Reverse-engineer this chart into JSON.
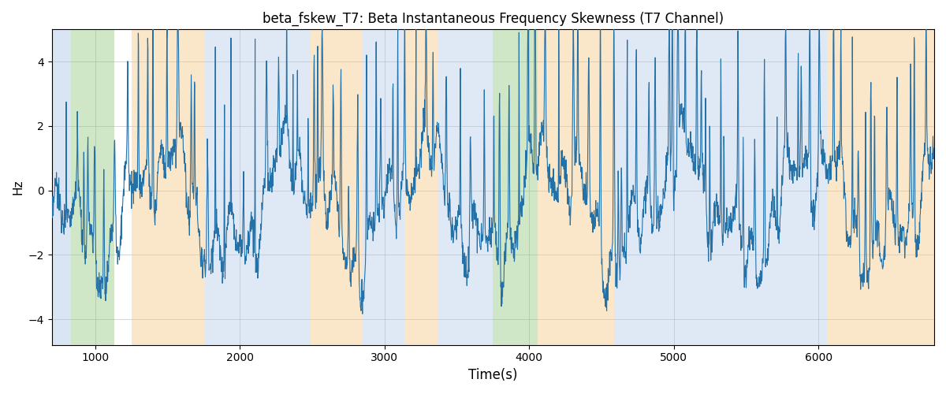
{
  "title": "beta_fskew_T7: Beta Instantaneous Frequency Skewness (T7 Channel)",
  "xlabel": "Time(s)",
  "ylabel": "Hz",
  "xlim": [
    700,
    6800
  ],
  "ylim": [
    -4.8,
    5.0
  ],
  "yticks": [
    -4,
    -2,
    0,
    2,
    4
  ],
  "background_bands": [
    {
      "xmin": 700,
      "xmax": 835,
      "color": "#adc6e8",
      "alpha": 0.45
    },
    {
      "xmin": 835,
      "xmax": 1135,
      "color": "#90c87a",
      "alpha": 0.42
    },
    {
      "xmin": 1135,
      "xmax": 1250,
      "color": "#ffffff",
      "alpha": 0.0
    },
    {
      "xmin": 1250,
      "xmax": 1760,
      "color": "#f5c888",
      "alpha": 0.45
    },
    {
      "xmin": 1760,
      "xmax": 2490,
      "color": "#adc6e8",
      "alpha": 0.38
    },
    {
      "xmin": 2490,
      "xmax": 2850,
      "color": "#f5c888",
      "alpha": 0.45
    },
    {
      "xmin": 2850,
      "xmax": 3140,
      "color": "#adc6e8",
      "alpha": 0.38
    },
    {
      "xmin": 3140,
      "xmax": 3370,
      "color": "#f5c888",
      "alpha": 0.45
    },
    {
      "xmin": 3370,
      "xmax": 3750,
      "color": "#adc6e8",
      "alpha": 0.38
    },
    {
      "xmin": 3750,
      "xmax": 4060,
      "color": "#90c87a",
      "alpha": 0.42
    },
    {
      "xmin": 4060,
      "xmax": 4590,
      "color": "#f5c888",
      "alpha": 0.45
    },
    {
      "xmin": 4590,
      "xmax": 6060,
      "color": "#adc6e8",
      "alpha": 0.38
    },
    {
      "xmin": 6060,
      "xmax": 6800,
      "color": "#f5c888",
      "alpha": 0.45
    }
  ],
  "line_color": "#2471a8",
  "line_width": 0.8,
  "grid_color": "#aaaaaa",
  "grid_alpha": 0.5
}
